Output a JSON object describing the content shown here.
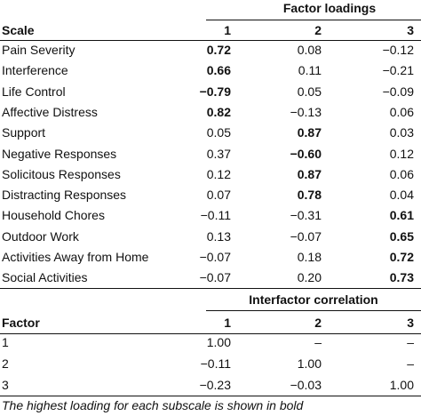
{
  "loadings_header": "Factor loadings",
  "scale_header": "Scale",
  "factor_cols": [
    "1",
    "2",
    "3"
  ],
  "loadings": [
    {
      "scale": "Pain Severity",
      "v": [
        "0.72",
        "0.08",
        "−0.12"
      ],
      "bold": [
        true,
        false,
        false
      ]
    },
    {
      "scale": "Interference",
      "v": [
        "0.66",
        "0.11",
        "−0.21"
      ],
      "bold": [
        true,
        false,
        false
      ]
    },
    {
      "scale": "Life Control",
      "v": [
        "−0.79",
        "0.05",
        "−0.09"
      ],
      "bold": [
        true,
        false,
        false
      ]
    },
    {
      "scale": "Affective Distress",
      "v": [
        "0.82",
        "−0.13",
        "0.06"
      ],
      "bold": [
        true,
        false,
        false
      ]
    },
    {
      "scale": "Support",
      "v": [
        "0.05",
        "0.87",
        "0.03"
      ],
      "bold": [
        false,
        true,
        false
      ]
    },
    {
      "scale": "Negative Responses",
      "v": [
        "0.37",
        "−0.60",
        "0.12"
      ],
      "bold": [
        false,
        true,
        false
      ]
    },
    {
      "scale": "Solicitous Responses",
      "v": [
        "0.12",
        "0.87",
        "0.06"
      ],
      "bold": [
        false,
        true,
        false
      ]
    },
    {
      "scale": "Distracting Responses",
      "v": [
        "0.07",
        "0.78",
        "0.04"
      ],
      "bold": [
        false,
        true,
        false
      ]
    },
    {
      "scale": "Household Chores",
      "v": [
        "−0.11",
        "−0.31",
        "0.61"
      ],
      "bold": [
        false,
        false,
        true
      ]
    },
    {
      "scale": "Outdoor Work",
      "v": [
        "0.13",
        "−0.07",
        "0.65"
      ],
      "bold": [
        false,
        false,
        true
      ]
    },
    {
      "scale": "Activities Away from Home",
      "v": [
        "−0.07",
        "0.18",
        "0.72"
      ],
      "bold": [
        false,
        false,
        true
      ]
    },
    {
      "scale": "Social Activities",
      "v": [
        "−0.07",
        "0.20",
        "0.73"
      ],
      "bold": [
        false,
        false,
        true
      ]
    }
  ],
  "interfactor_header": "Interfactor correlation",
  "factor_header": "Factor",
  "correlations": [
    {
      "factor": "1",
      "v": [
        "1.00",
        "–",
        "–"
      ]
    },
    {
      "factor": "2",
      "v": [
        "−0.11",
        "1.00",
        "–"
      ]
    },
    {
      "factor": "3",
      "v": [
        "−0.23",
        "−0.03",
        "1.00"
      ]
    }
  ],
  "footnote": "The highest loading for each subscale is shown in bold"
}
